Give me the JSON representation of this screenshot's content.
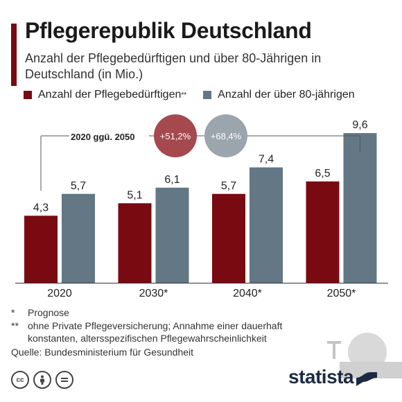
{
  "header": {
    "title": "Pflegerepublik Deutschland",
    "subtitle": "Anzahl der Pflegebedürftigen und über 80-Jährigen in Deutschland (in Mio.)"
  },
  "legend": {
    "series1_label": "Anzahl der Pflegebedürftigen",
    "series1_sup": "**",
    "series2_label": "Anzahl der über 80-jährigen"
  },
  "colors": {
    "series1": "#7a0a12",
    "series2": "#637785",
    "accent": "#7a0a12",
    "badge1": "#a5494f",
    "badge2": "#9aa5ae"
  },
  "chart_data": {
    "type": "bar",
    "categories": [
      "2020",
      "2030*",
      "2040*",
      "2050*"
    ],
    "series": [
      {
        "name": "Anzahl der Pflegebedürftigen**",
        "values": [
          4.3,
          5.1,
          5.7,
          6.5
        ],
        "labels": [
          "4,3",
          "5,1",
          "5,7",
          "6,5"
        ]
      },
      {
        "name": "Anzahl der über 80-jährigen",
        "values": [
          5.7,
          6.1,
          7.4,
          9.6
        ],
        "labels": [
          "5,7",
          "6,1",
          "7,4",
          "9,6"
        ]
      }
    ],
    "ylim": [
      0,
      10
    ],
    "grid": false,
    "legend_position": "top-left",
    "annotation": {
      "label": "2020 ggü. 2050",
      "badges": [
        "+51,2%",
        "+68,4%"
      ]
    }
  },
  "notes": [
    {
      "mark": "*",
      "text": "Prognose"
    },
    {
      "mark": "**",
      "text": "ohne Private Pflegeversicherung; Annahme einer dauerhaft konstanten, altersspezifischen Pflegewahrscheinlichkeit"
    }
  ],
  "source": "Quelle: Bundesministerium für Gesundheit",
  "brand": "statista",
  "license_icons": [
    "cc",
    "by",
    "nd"
  ]
}
